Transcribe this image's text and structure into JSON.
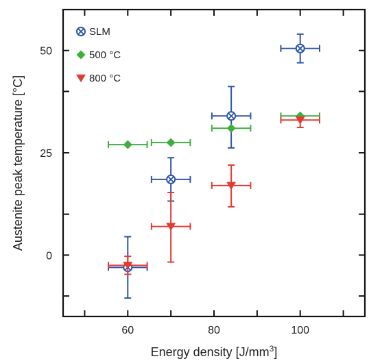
{
  "chart_data": {
    "type": "scatter",
    "xlabel": "Energy density [J/mm",
    "xlabel_superscript": "3",
    "xlabel_suffix": "]",
    "ylabel": "Austenite peak temperature [°C]",
    "xlim": [
      45,
      115
    ],
    "ylim": [
      -15,
      60
    ],
    "x_ticks": [
      60,
      80,
      100
    ],
    "x_minor_ticks": [
      50,
      70,
      90,
      110
    ],
    "y_ticks": [
      0,
      25,
      50
    ],
    "y_minor_ticks": [
      -10,
      10,
      40
    ],
    "grid": false,
    "legend_placement": "top-left",
    "series": [
      {
        "name": "SLM",
        "marker": "circle-x",
        "color": "#2e55a8",
        "points": [
          {
            "x": 60,
            "y": -3,
            "xerr": 4.5,
            "yerr_low": 7.5,
            "yerr_high": 7.5
          },
          {
            "x": 70,
            "y": 18.5,
            "xerr": 4.5,
            "yerr_low": 5.3,
            "yerr_high": 5.3
          },
          {
            "x": 84,
            "y": 34,
            "xerr": 4.5,
            "yerr_low": 7.8,
            "yerr_high": 7.2
          },
          {
            "x": 100,
            "y": 50.5,
            "xerr": 4.5,
            "yerr_low": 3.5,
            "yerr_high": 3.5
          }
        ]
      },
      {
        "name": "500 °C",
        "marker": "diamond",
        "color": "#3fae3f",
        "points": [
          {
            "x": 60,
            "y": 27,
            "xerr": 4.5,
            "yerr_low": 0,
            "yerr_high": 0
          },
          {
            "x": 70,
            "y": 27.5,
            "xerr": 4.5,
            "yerr_low": 0,
            "yerr_high": 0
          },
          {
            "x": 84,
            "y": 31,
            "xerr": 4.5,
            "yerr_low": 0,
            "yerr_high": 0
          },
          {
            "x": 100,
            "y": 34,
            "xerr": 4.5,
            "yerr_low": 0,
            "yerr_high": 0
          }
        ]
      },
      {
        "name": "800 °C",
        "marker": "triangle-down",
        "color": "#e23b35",
        "points": [
          {
            "x": 60,
            "y": -2.5,
            "xerr": 4.5,
            "yerr_low": 2.2,
            "yerr_high": 2.2
          },
          {
            "x": 70,
            "y": 7,
            "xerr": 4.5,
            "yerr_low": 8.7,
            "yerr_high": 8.3
          },
          {
            "x": 84,
            "y": 17,
            "xerr": 4.5,
            "yerr_low": 5.2,
            "yerr_high": 5
          },
          {
            "x": 100,
            "y": 33,
            "xerr": 4.5,
            "yerr_low": 1.8,
            "yerr_high": 0.5
          }
        ]
      }
    ]
  }
}
